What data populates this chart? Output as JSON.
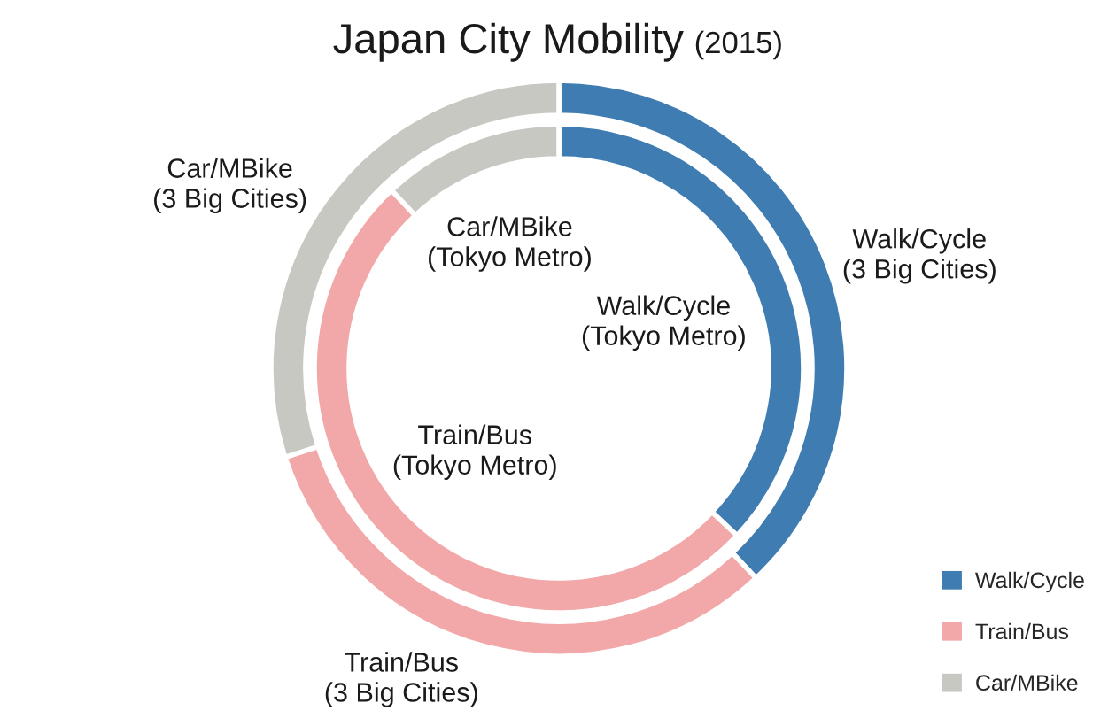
{
  "chart_data": {
    "type": "donut",
    "title": "Japan City Mobility",
    "subtitle": "(2015)",
    "categories": [
      "Walk/Cycle",
      "Train/Bus",
      "Car/MBike"
    ],
    "colors": [
      "#3e7cb1",
      "#f2a7a8",
      "#c8c8c2"
    ],
    "series": [
      {
        "name": "(3 Big Cities)",
        "values": [
          38,
          32,
          30
        ]
      },
      {
        "name": "(Tokyo Metro)",
        "values": [
          37,
          51,
          12
        ]
      }
    ],
    "legend": "bottom right"
  }
}
